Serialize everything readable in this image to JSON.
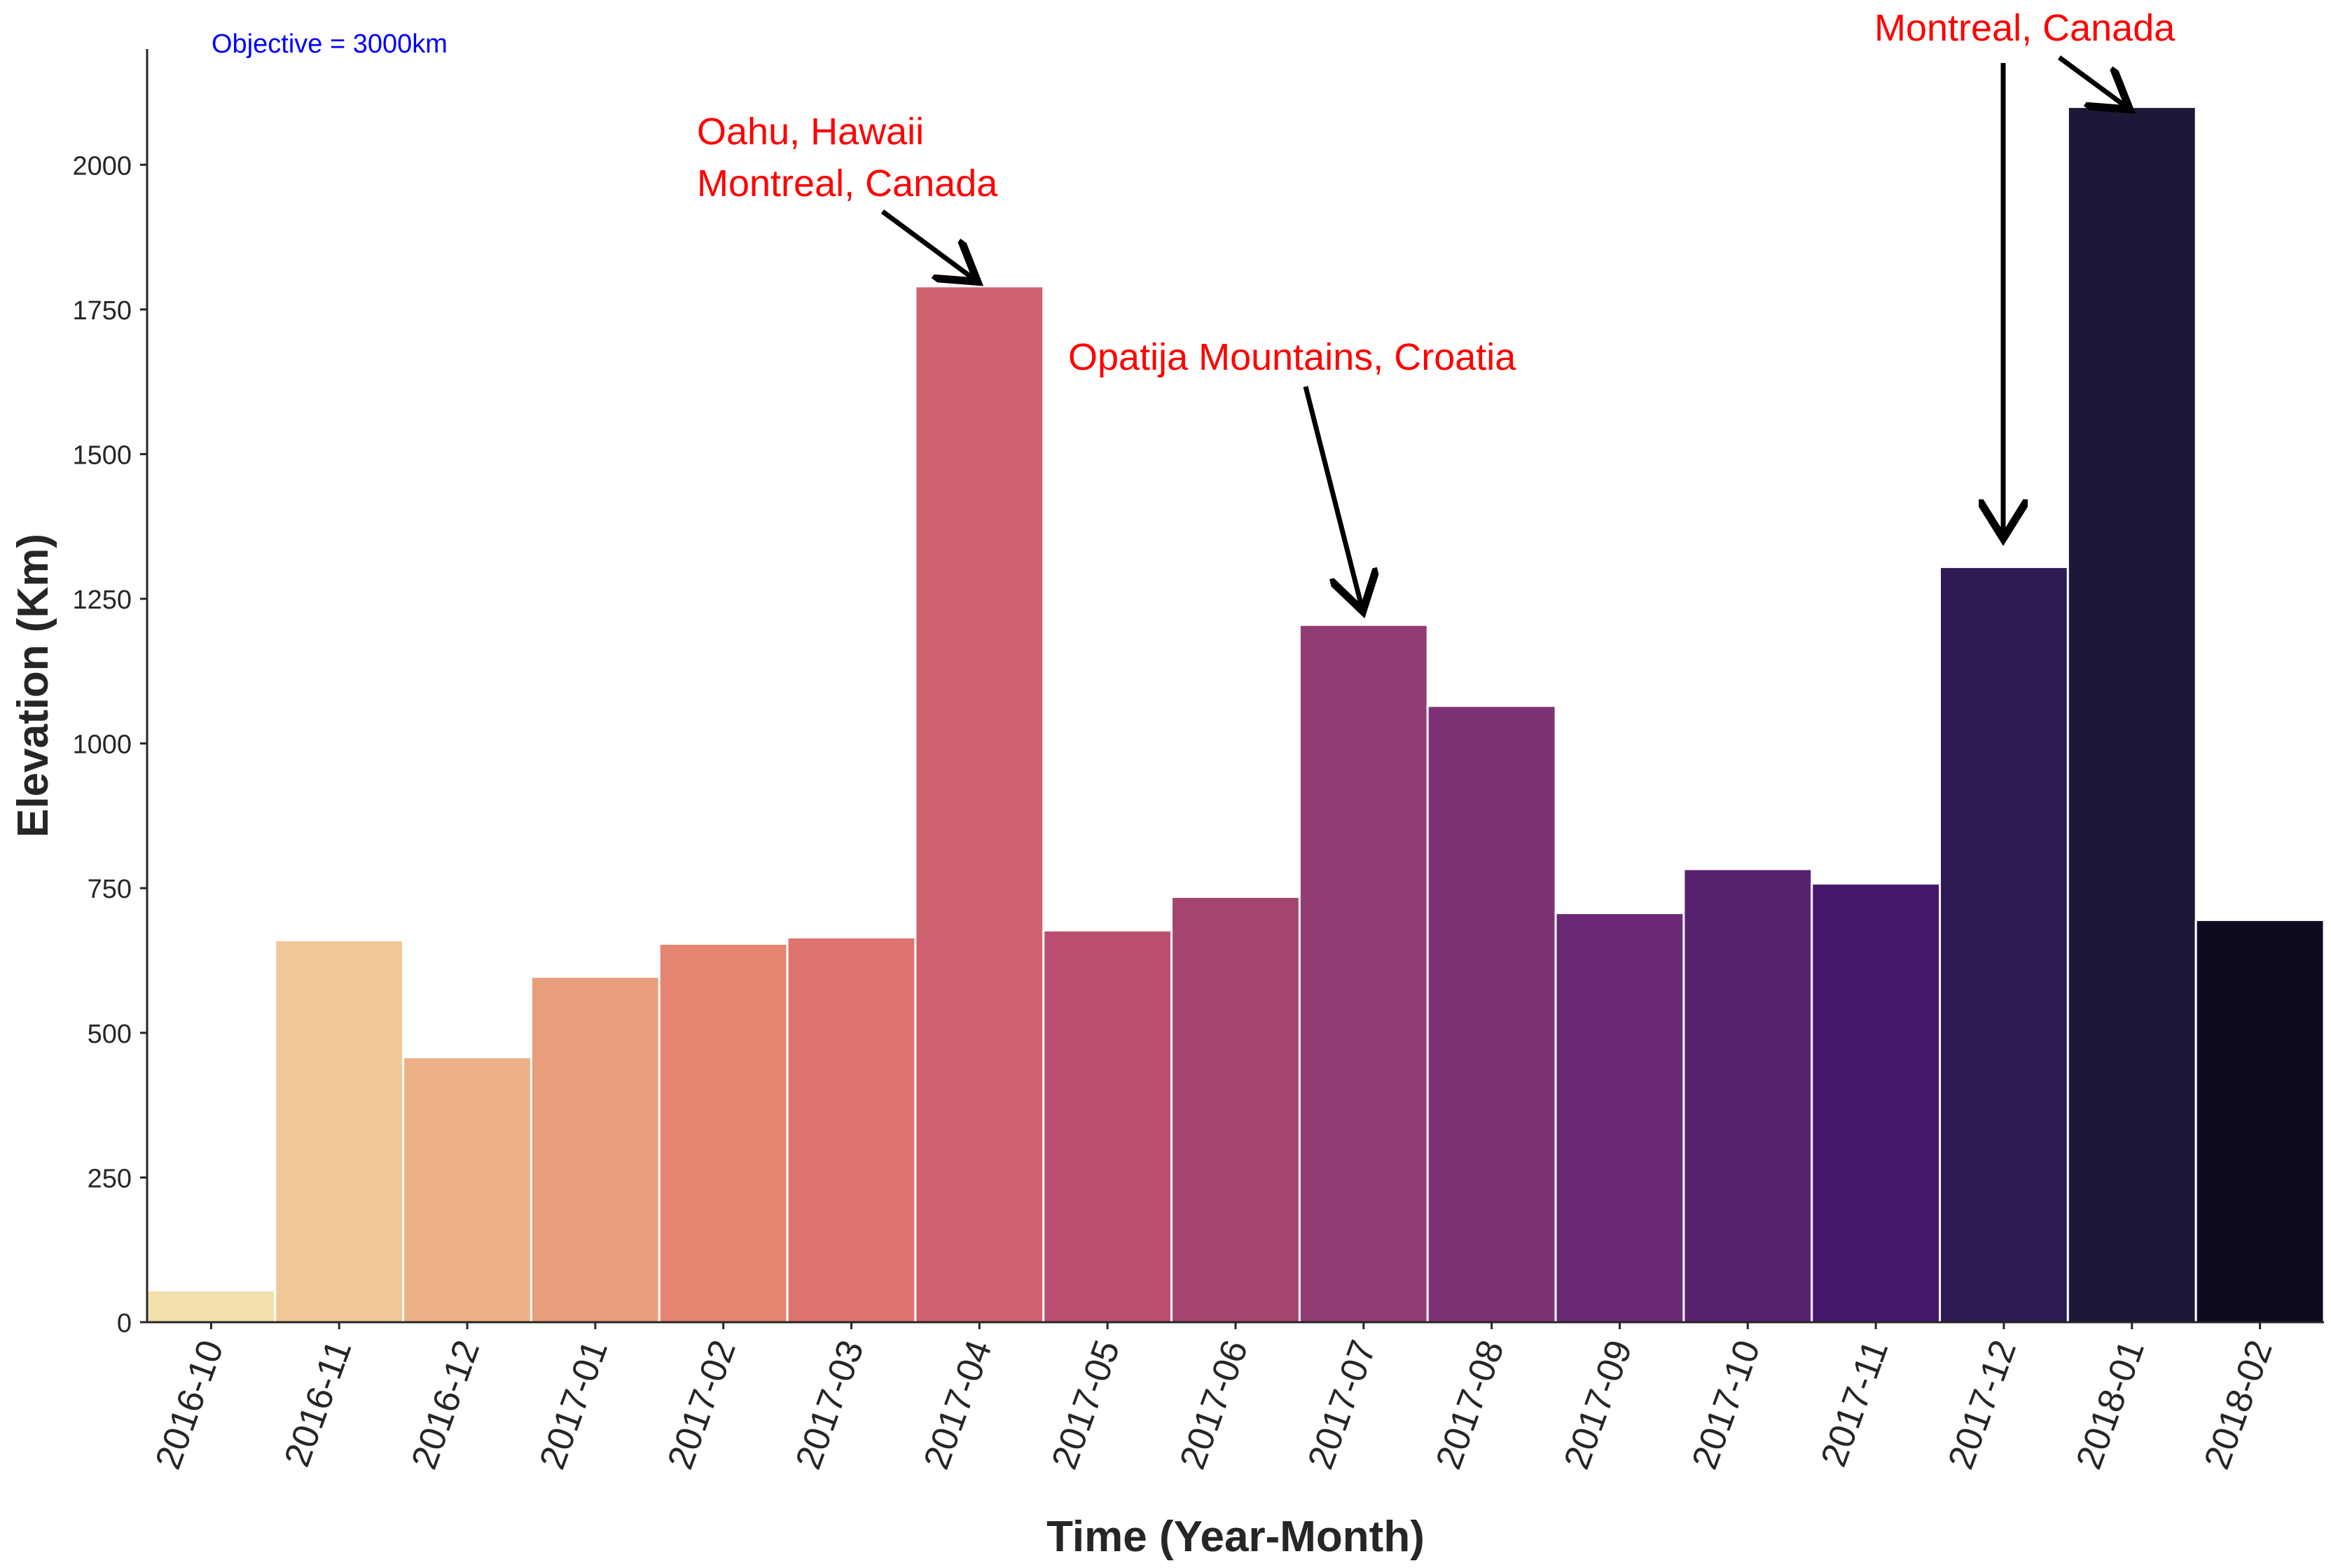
{
  "chart_data": {
    "type": "bar",
    "title": "",
    "xlabel": "Time (Year-Month)",
    "ylabel": "Elevation (Km)",
    "categories": [
      "2016-10",
      "2016-11",
      "2016-12",
      "2017-01",
      "2017-02",
      "2017-03",
      "2017-04",
      "2017-05",
      "2017-06",
      "2017-07",
      "2017-08",
      "2017-09",
      "2017-10",
      "2017-11",
      "2017-12",
      "2018-01",
      "2018-02"
    ],
    "values": [
      55,
      660,
      458,
      597,
      654,
      665,
      1790,
      677,
      735,
      1205,
      1065,
      707,
      783,
      758,
      1305,
      2100,
      695
    ],
    "colors": [
      "#f3e1ad",
      "#f0c898",
      "#eeb187",
      "#e99e7b",
      "#e58571",
      "#de7470",
      "#cf6170",
      "#bb4f6f",
      "#a4446f",
      "#913c72",
      "#7e3276",
      "#6a2a73",
      "#58216f",
      "#45186b",
      "#2e1a53",
      "#1d1837",
      "#0c0b1f"
    ],
    "ylim": [
      0,
      2200
    ],
    "yticks": [
      0,
      250,
      500,
      750,
      1000,
      1250,
      1500,
      1750,
      2000
    ],
    "grid": false,
    "objective_note": {
      "text": "Objective = 3000km",
      "color": "#0000ff"
    },
    "annotations": [
      {
        "lines": [
          "Oahu, Hawaii",
          "Montreal, Canada"
        ],
        "target_category": "2017-04",
        "target_value": 1790,
        "color": "#ff0000"
      },
      {
        "lines": [
          "Opatija Mountains, Croatia"
        ],
        "target_category": "2017-07",
        "target_value": 1205,
        "color": "#ff0000"
      },
      {
        "lines": [
          "Montreal, Canada"
        ],
        "target_category": "2017-12",
        "target_value": 1305,
        "color": "#ff0000"
      },
      {
        "lines": [],
        "target_category": "2018-01",
        "target_value": 2100,
        "color": "#ff0000"
      }
    ]
  }
}
